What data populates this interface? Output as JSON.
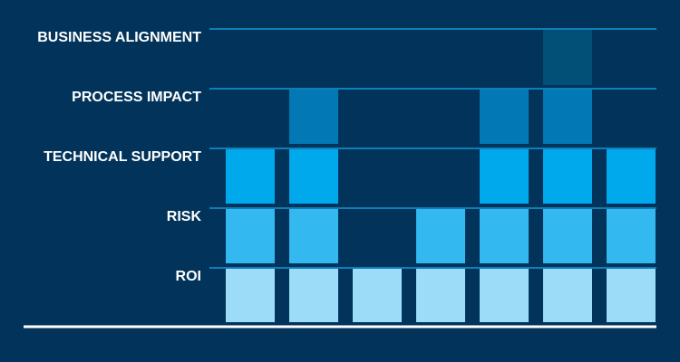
{
  "chart_data": {
    "type": "heatmap",
    "title": "",
    "rows": [
      "BUSINESS ALIGNMENT",
      "PROCESS IMPACT",
      "TECHNICAL SUPPORT",
      "RISK",
      "ROI"
    ],
    "columns": 7,
    "column_heights": [
      3,
      4,
      1,
      2,
      4,
      5,
      3
    ],
    "level_order_bottom_to_top": [
      "ROI",
      "RISK",
      "TECHNICAL SUPPORT",
      "PROCESS IMPACT",
      "BUSINESS ALIGNMENT"
    ],
    "level_colors": [
      "#9cdcf8",
      "#33b8f0",
      "#00a8ec",
      "#0279b4",
      "#024f78"
    ],
    "background_color": "#02335a",
    "line_color": "#0e7fb8",
    "baseline_color": "#ffffff",
    "grid": true
  }
}
